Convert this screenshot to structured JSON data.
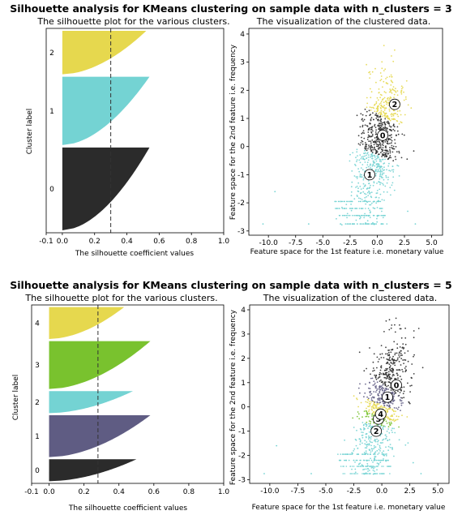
{
  "figures": [
    {
      "suptitle": "Silhouette analysis for KMeans clustering on sample data with n_clusters = 3",
      "n_clusters": 3,
      "silhouette_title": "The silhouette plot for the various clusters.",
      "silhouette_xlabel": "The silhouette coefficient values",
      "silhouette_ylabel": "Cluster label",
      "scatter_title": "The visualization of the clustered data.",
      "scatter_xlabel": "Feature space for the 1st feature i.e. monetary value",
      "scatter_ylabel": "Feature space for the 2nd feature i.e. frequency",
      "avg_score": 0.3
    },
    {
      "suptitle": "Silhouette analysis for KMeans clustering on sample data with n_clusters = 5",
      "n_clusters": 5,
      "silhouette_title": "The silhouette plot for the various clusters.",
      "silhouette_xlabel": "The silhouette coefficient values",
      "silhouette_ylabel": "Cluster label",
      "scatter_title": "The visualization of the clustered data.",
      "scatter_xlabel": "Feature space for the 1st feature i.e. monetary value",
      "scatter_ylabel": "Feature space for the 2nd feature i.e. frequency",
      "avg_score": 0.28
    }
  ],
  "chart_data": [
    {
      "type": "area",
      "title": "The silhouette plot for the various clusters.",
      "xlabel": "The silhouette coefficient values",
      "ylabel": "Cluster label",
      "xlim": [
        -0.1,
        1.0
      ],
      "xticks": [
        "-0.1",
        "0.0",
        "0.2",
        "0.4",
        "0.6",
        "0.8",
        "1.0"
      ],
      "xtick_values": [
        -0.1,
        0.0,
        0.2,
        0.4,
        0.6,
        0.8,
        1.0
      ],
      "average_silhouette": 0.3,
      "clusters": [
        {
          "label": "0",
          "color": "#2b2b2b",
          "size": 0.4,
          "max": 0.54
        },
        {
          "label": "1",
          "color": "#74d3d3",
          "size": 0.33,
          "max": 0.54
        },
        {
          "label": "2",
          "color": "#e6d84e",
          "size": 0.21,
          "max": 0.52
        }
      ]
    },
    {
      "type": "scatter",
      "title": "The visualization of the clustered data.",
      "xlabel": "Feature space for the 1st feature i.e. monetary value",
      "ylabel": "Feature space for the 2nd feature i.e. frequency",
      "xlim": [
        -11.8,
        6.0
      ],
      "ylim": [
        -3.15,
        4.2
      ],
      "xticks": [
        "-10.0",
        "-7.5",
        "-5.0",
        "-2.5",
        "0.0",
        "2.5",
        "5.0"
      ],
      "xtick_values": [
        -10.0,
        -7.5,
        -5.0,
        -2.5,
        0.0,
        2.5,
        5.0
      ],
      "yticks": [
        "-3",
        "-2",
        "-1",
        "0",
        "1",
        "2",
        "3",
        "4"
      ],
      "ytick_values": [
        -3,
        -2,
        -1,
        0,
        1,
        2,
        3,
        4
      ],
      "centers": [
        {
          "label": "0",
          "x": 0.5,
          "y": 0.4,
          "color": "#2b2b2b"
        },
        {
          "label": "1",
          "x": -0.7,
          "y": -1.0,
          "color": "#74d3d3"
        },
        {
          "label": "2",
          "x": 1.6,
          "y": 1.5,
          "color": "#e6d84e"
        }
      ]
    },
    {
      "type": "area",
      "title": "The silhouette plot for the various clusters.",
      "xlabel": "The silhouette coefficient values",
      "ylabel": "Cluster label",
      "xlim": [
        -0.1,
        1.0
      ],
      "xticks": [
        "-0.1",
        "0.0",
        "0.2",
        "0.4",
        "0.6",
        "0.8",
        "1.0"
      ],
      "xtick_values": [
        -0.1,
        0.0,
        0.2,
        0.4,
        0.6,
        0.8,
        1.0
      ],
      "average_silhouette": 0.28,
      "clusters": [
        {
          "label": "0",
          "color": "#2b2b2b",
          "size": 0.11,
          "max": 0.5
        },
        {
          "label": "1",
          "color": "#5f5c83",
          "size": 0.21,
          "max": 0.58
        },
        {
          "label": "2",
          "color": "#74d3d3",
          "size": 0.11,
          "max": 0.48
        },
        {
          "label": "3",
          "color": "#79c22e",
          "size": 0.24,
          "max": 0.58
        },
        {
          "label": "4",
          "color": "#e6d84e",
          "size": 0.16,
          "max": 0.43
        }
      ]
    },
    {
      "type": "scatter",
      "title": "The visualization of the clustered data.",
      "xlabel": "Feature space for the 1st feature i.e. monetary value",
      "ylabel": "Feature space for the 2nd feature i.e. frequency",
      "xlim": [
        -11.8,
        6.0
      ],
      "ylim": [
        -3.15,
        4.2
      ],
      "xticks": [
        "-10.0",
        "-7.5",
        "-5.0",
        "-2.5",
        "0.0",
        "2.5",
        "5.0"
      ],
      "xtick_values": [
        -10.0,
        -7.5,
        -5.0,
        -2.5,
        0.0,
        2.5,
        5.0
      ],
      "yticks": [
        "-3",
        "-2",
        "-1",
        "0",
        "1",
        "2",
        "3",
        "4"
      ],
      "ytick_values": [
        -3,
        -2,
        -1,
        0,
        1,
        2,
        3,
        4
      ],
      "centers": [
        {
          "label": "0",
          "x": 1.3,
          "y": 0.9,
          "color": "#2b2b2b"
        },
        {
          "label": "1",
          "x": 0.5,
          "y": 0.4,
          "color": "#5f5c83"
        },
        {
          "label": "2",
          "x": -0.5,
          "y": -1.0,
          "color": "#74d3d3"
        },
        {
          "label": "3",
          "x": -0.3,
          "y": -0.5,
          "color": "#79c22e"
        },
        {
          "label": "4",
          "x": -0.1,
          "y": -0.3,
          "color": "#e6d84e"
        }
      ]
    }
  ]
}
